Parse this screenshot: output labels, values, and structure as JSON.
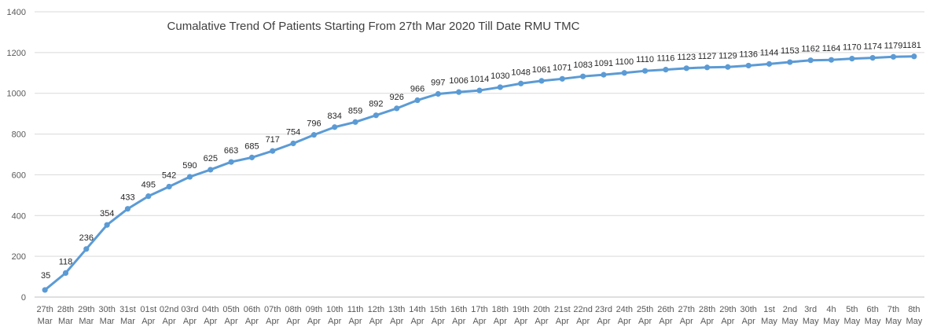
{
  "chart_data": {
    "type": "line",
    "title": "Cumalative Trend Of Patients Starting From 27th Mar 2020 Till Date RMU TMC",
    "xlabel": "",
    "ylabel": "",
    "ylim": [
      0,
      1400
    ],
    "yticks": [
      "0",
      "200",
      "400",
      "600",
      "800",
      "1000",
      "1200",
      "1400"
    ],
    "grid": true,
    "legend": "none",
    "series_color": "#5b9bd5",
    "categories": [
      [
        "27th",
        "Mar"
      ],
      [
        "28th",
        "Mar"
      ],
      [
        "29th",
        "Mar"
      ],
      [
        "30th",
        "Mar"
      ],
      [
        "31st",
        "Mar"
      ],
      [
        "01st",
        "Apr"
      ],
      [
        "02nd",
        "Apr"
      ],
      [
        "03rd",
        "Apr"
      ],
      [
        "04th",
        "Apr"
      ],
      [
        "05th",
        "Apr"
      ],
      [
        "06th",
        "Apr"
      ],
      [
        "07th",
        "Apr"
      ],
      [
        "08th",
        "Apr"
      ],
      [
        "09th",
        "Apr"
      ],
      [
        "10th",
        "Apr"
      ],
      [
        "11th",
        "Apr"
      ],
      [
        "12th",
        "Apr"
      ],
      [
        "13th",
        "Apr"
      ],
      [
        "14th",
        "Apr"
      ],
      [
        "15th",
        "Apr"
      ],
      [
        "16th",
        "Apr"
      ],
      [
        "17th",
        "Apr"
      ],
      [
        "18th",
        "Apr"
      ],
      [
        "19th",
        "Apr"
      ],
      [
        "20th",
        "Apr"
      ],
      [
        "21st",
        "Apr"
      ],
      [
        "22nd",
        "Apr"
      ],
      [
        "23rd",
        "Apr"
      ],
      [
        "24th",
        "Apr"
      ],
      [
        "25th",
        "Apr"
      ],
      [
        "26th",
        "Apr"
      ],
      [
        "27th",
        "Apr"
      ],
      [
        "28th",
        "Apr"
      ],
      [
        "29th",
        "Apr"
      ],
      [
        "30th",
        "Apr"
      ],
      [
        "1st",
        "May"
      ],
      [
        "2nd",
        "May"
      ],
      [
        "3rd",
        "May"
      ],
      [
        "4h",
        "May"
      ],
      [
        "5th",
        "May"
      ],
      [
        "6th",
        "May"
      ],
      [
        "7th",
        "May"
      ],
      [
        "8th",
        "May"
      ]
    ],
    "values": [
      35,
      118,
      236,
      354,
      433,
      495,
      542,
      590,
      625,
      663,
      685,
      717,
      754,
      796,
      834,
      859,
      892,
      926,
      966,
      997,
      1006,
      1014,
      1030,
      1048,
      1061,
      1071,
      1083,
      1091,
      1100,
      1110,
      1116,
      1123,
      1127,
      1129,
      1136,
      1144,
      1153,
      1162,
      1164,
      1170,
      1174,
      1179,
      1181
    ]
  }
}
